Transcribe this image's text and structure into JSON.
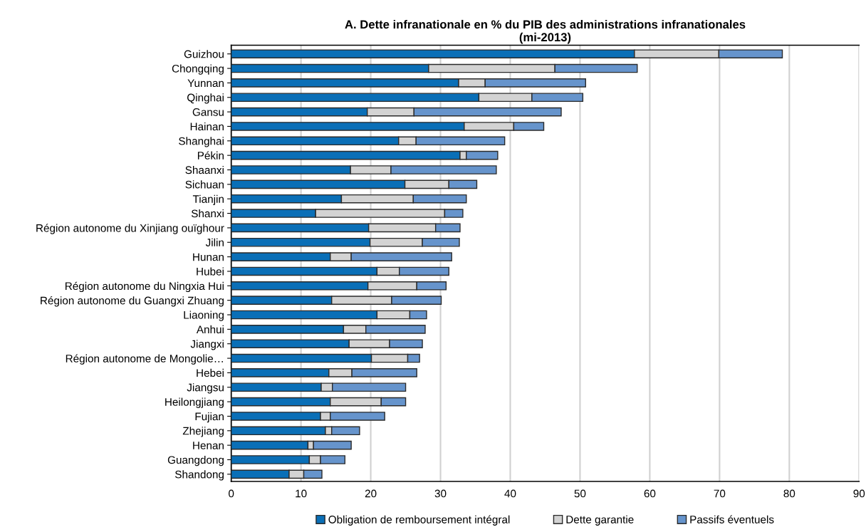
{
  "chart_data": {
    "type": "bar",
    "orientation": "horizontal",
    "stacked": true,
    "title": "A. Dette infranationale en % du PIB des administrations infranationales\n(mi-2013)",
    "categories": [
      "Guizhou",
      "Chongqing",
      "Yunnan",
      "Qinghai",
      "Gansu",
      "Hainan",
      "Shanghai",
      "Pékin",
      "Shaanxi",
      "Sichuan",
      "Tianjin",
      "Shanxi",
      "Région autonome du Xinjiang ouïghour",
      "Jilin",
      "Hunan",
      "Hubei",
      "Région autonome du Ningxia Hui",
      "Région autonome du Guangxi Zhuang",
      "Liaoning",
      "Anhui",
      "Jiangxi",
      "Région autonome de Mongolie…",
      "Hebei",
      "Jiangsu",
      "Heilongjiang",
      "Fujian",
      "Zhejiang",
      "Henan",
      "Guangdong",
      "Shandong"
    ],
    "series": [
      {
        "name": "Obligation de remboursement intégral",
        "color": "#0a6fb7",
        "values": [
          57.8,
          28.3,
          32.6,
          35.5,
          19.5,
          33.4,
          24.0,
          32.8,
          17.1,
          24.9,
          15.8,
          12.1,
          19.7,
          19.9,
          14.2,
          20.9,
          19.6,
          14.4,
          20.9,
          16.1,
          16.9,
          20.1,
          14.0,
          12.9,
          14.2,
          12.8,
          13.5,
          11.0,
          11.2,
          8.3
        ]
      },
      {
        "name": "Dette garantie",
        "color": "#d3d3d3",
        "values": [
          12.1,
          18.1,
          3.8,
          7.6,
          6.7,
          7.1,
          2.5,
          0.9,
          5.8,
          6.3,
          10.3,
          18.5,
          9.6,
          7.5,
          3.0,
          3.2,
          7.0,
          8.6,
          4.7,
          3.2,
          5.8,
          5.2,
          3.3,
          1.6,
          7.3,
          1.4,
          0.9,
          0.8,
          1.6,
          2.1
        ]
      },
      {
        "name": "Passifs éventuels",
        "color": "#6694cc",
        "values": [
          9.1,
          11.8,
          14.4,
          7.3,
          21.1,
          4.3,
          12.7,
          4.5,
          15.1,
          4.0,
          7.6,
          2.6,
          3.5,
          5.3,
          14.4,
          7.1,
          4.2,
          7.1,
          2.4,
          8.5,
          4.7,
          1.7,
          9.3,
          10.5,
          3.5,
          7.8,
          4.0,
          5.4,
          3.5,
          2.6
        ]
      }
    ],
    "xlim": [
      0,
      90
    ],
    "xticks": [
      0,
      10,
      20,
      30,
      40,
      50,
      60,
      70,
      80,
      90
    ],
    "grid": "x",
    "legend": "bottom"
  }
}
